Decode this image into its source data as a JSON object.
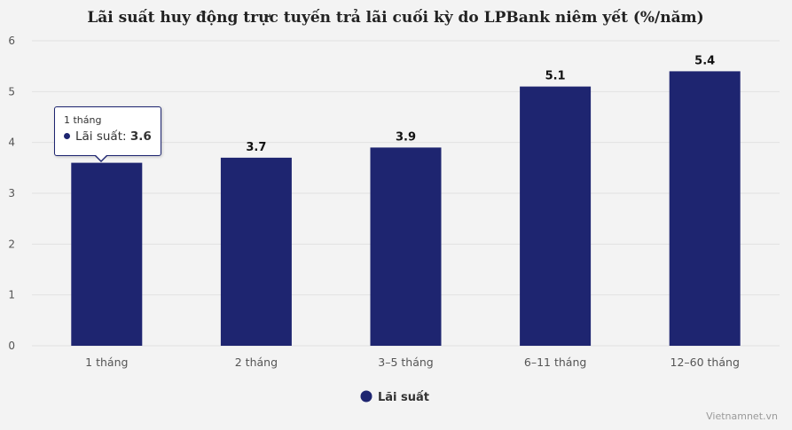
{
  "chart_data": {
    "type": "bar",
    "title": "Lãi suất huy động trực tuyến trả lãi cuối kỳ do LPBank niêm yết (%/năm)",
    "categories": [
      "1 tháng",
      "2 tháng",
      "3–5 tháng",
      "6–11 tháng",
      "12–60 tháng"
    ],
    "series": [
      {
        "name": "Lãi suất",
        "values": [
          3.6,
          3.7,
          3.9,
          5.1,
          5.4
        ],
        "color": "#1e2570"
      }
    ],
    "ylim": [
      0,
      6
    ],
    "yticks": [
      "0",
      "1",
      "2",
      "3",
      "4",
      "5",
      "6"
    ],
    "grid": true,
    "legend": "bottom-center"
  },
  "tooltip": {
    "header": "1 tháng",
    "series_label": "Lãi suất:",
    "value": "3.6"
  },
  "credit": "Vietnamnet.vn"
}
